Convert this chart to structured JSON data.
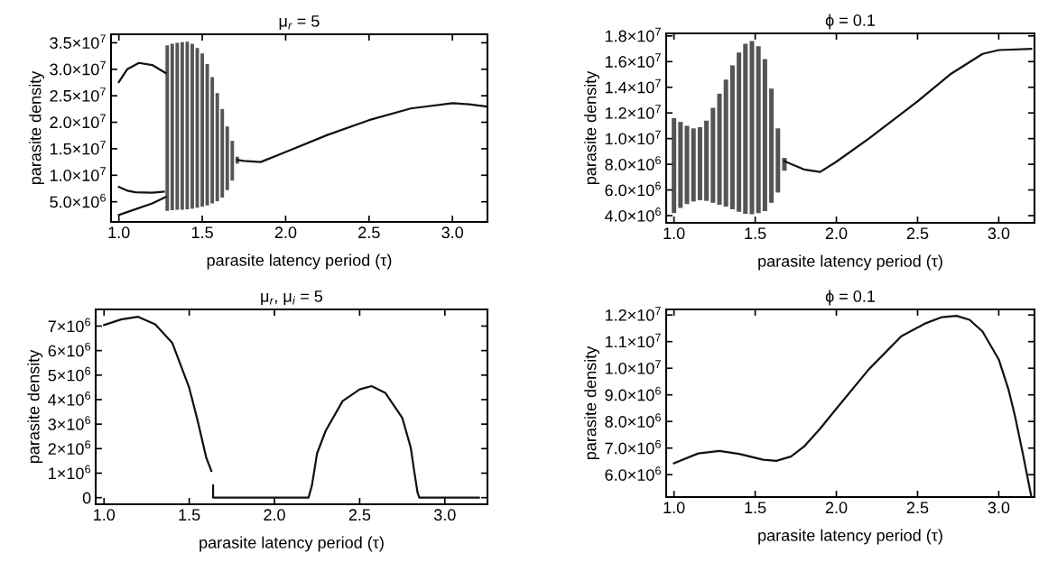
{
  "chart_data": [
    {
      "type": "line",
      "title": "μ$_{r}$ = 5",
      "xlabel": "parasite latency period (τ)",
      "ylabel": "parasite density",
      "grid": false,
      "marker": "none",
      "xlim": [
        0.953,
        3.21
      ],
      "xticks": [
        {
          "value": 1.0,
          "label": "1.0"
        },
        {
          "value": 1.5,
          "label": "1.5"
        },
        {
          "value": 2.0,
          "label": "2.0"
        },
        {
          "value": 2.5,
          "label": "2.5"
        },
        {
          "value": 3.0,
          "label": "3.0"
        }
      ],
      "ylim": [
        1200000,
        36600000
      ],
      "yticks": [
        {
          "value": 5000000,
          "label": "5.0×10$^{6}$"
        },
        {
          "value": 10000000,
          "label": "1.0×10$^{7}$"
        },
        {
          "value": 15000000,
          "label": "1.5×10$^{7}$"
        },
        {
          "value": 20000000,
          "label": "2.0×10$^{7}$"
        },
        {
          "value": 25000000,
          "label": "2.5×10$^{7}$"
        },
        {
          "value": 30000000,
          "label": "3.0×10$^{7}$"
        },
        {
          "value": 35000000,
          "label": "3.5×10$^{7}$"
        }
      ],
      "series": [
        {
          "color": "#111111",
          "x": [
            1.0,
            1.05,
            1.12,
            1.2,
            1.28
          ],
          "values": [
            27600000,
            30000000,
            31200000,
            30800000,
            29300000
          ]
        },
        {
          "color": "#111111",
          "x": [
            1.0,
            1.05,
            1.1,
            1.2,
            1.27
          ],
          "values": [
            7800000,
            7100000,
            6800000,
            6700000,
            6900000
          ]
        },
        {
          "color": "#111111",
          "x": [
            1.0,
            1.1,
            1.2,
            1.28
          ],
          "values": [
            2500000,
            3600000,
            4700000,
            5900000
          ]
        },
        {
          "type": "bar",
          "color": "#555555",
          "x": [
            1.29,
            1.32,
            1.35,
            1.38,
            1.41,
            1.44,
            1.47,
            1.5,
            1.53,
            1.56,
            1.59,
            1.62,
            1.65,
            1.68,
            1.71
          ],
          "base": [
            3300000,
            3400000,
            3500000,
            3500000,
            3600000,
            3700000,
            3900000,
            4100000,
            4300000,
            4700000,
            5100000,
            5800000,
            7200000,
            9000000,
            12200000
          ],
          "values": [
            31200000,
            31400000,
            31500000,
            31600000,
            31600000,
            31100000,
            30100000,
            28900000,
            26700000,
            23800000,
            20400000,
            16700000,
            12000000,
            7500000,
            1300000
          ]
        },
        {
          "color": "#111111",
          "x": [
            1.71,
            1.75,
            1.85,
            2.0,
            2.25,
            2.5,
            2.75,
            3.0,
            3.1,
            3.2
          ],
          "values": [
            12900000,
            12700000,
            12500000,
            14400000,
            17600000,
            20400000,
            22600000,
            23600000,
            23400000,
            23000000
          ]
        }
      ]
    },
    {
      "type": "line",
      "title": "ϕ = 0.1",
      "xlabel": "parasite latency period (τ)",
      "ylabel": "parasite density",
      "grid": false,
      "marker": "none",
      "xlim": [
        0.952,
        3.22
      ],
      "xticks": [
        {
          "value": 1.0,
          "label": "1.0"
        },
        {
          "value": 1.5,
          "label": "1.5"
        },
        {
          "value": 2.0,
          "label": "2.0"
        },
        {
          "value": 2.5,
          "label": "2.5"
        },
        {
          "value": 3.0,
          "label": "3.0"
        }
      ],
      "ylim": [
        3440000,
        18200000
      ],
      "yticks": [
        {
          "value": 4000000,
          "label": "4.0×10$^{6}$"
        },
        {
          "value": 6000000,
          "label": "6.0×10$^{6}$"
        },
        {
          "value": 8000000,
          "label": "8.0×10$^{6}$"
        },
        {
          "value": 10000000,
          "label": "1.0×10$^{7}$"
        },
        {
          "value": 12000000,
          "label": "1.2×10$^{7}$"
        },
        {
          "value": 14000000,
          "label": "1.4×10$^{7}$"
        },
        {
          "value": 16000000,
          "label": "1.6×10$^{7}$"
        },
        {
          "value": 18000000,
          "label": "1.8×10$^{7}$"
        }
      ],
      "series": [
        {
          "type": "bar",
          "color": "#555555",
          "x": [
            1.0,
            1.04,
            1.08,
            1.12,
            1.16,
            1.2,
            1.24,
            1.28,
            1.32,
            1.36,
            1.4,
            1.44,
            1.48,
            1.52,
            1.56,
            1.6,
            1.64,
            1.68
          ],
          "base": [
            4200000,
            4600000,
            4900000,
            5100000,
            5200000,
            5150000,
            5000000,
            4850000,
            4700000,
            4500000,
            4300000,
            4150000,
            4100000,
            4200000,
            4350000,
            5000000,
            5800000,
            7500000
          ],
          "values": [
            7400000,
            6700000,
            6100000,
            5700000,
            5700000,
            6250000,
            7400000,
            8650000,
            9900000,
            11200000,
            12400000,
            13250000,
            13500000,
            13000000,
            11850000,
            8900000,
            5000000,
            1000000
          ]
        },
        {
          "color": "#111111",
          "x": [
            1.68,
            1.8,
            1.9,
            2.0,
            2.2,
            2.5,
            2.7,
            2.9,
            3.0,
            3.2
          ],
          "values": [
            8240000,
            7600000,
            7400000,
            8200000,
            10000000,
            12900000,
            15000000,
            16600000,
            16900000,
            17000000
          ]
        }
      ]
    },
    {
      "type": "line",
      "title": "μ$_{r}$, μ$_{i}$ = 5",
      "xlabel": "parasite latency period (τ)",
      "ylabel": "parasite density",
      "grid": false,
      "marker": "none",
      "xlim": [
        0.951,
        3.25
      ],
      "xticks": [
        {
          "value": 1.0,
          "label": "1.0"
        },
        {
          "value": 1.5,
          "label": "1.5"
        },
        {
          "value": 2.0,
          "label": "2.0"
        },
        {
          "value": 2.5,
          "label": "2.5"
        },
        {
          "value": 3.0,
          "label": "3.0"
        }
      ],
      "ylim": [
        -270000,
        7680000
      ],
      "yticks": [
        0,
        {
          "value": 1000000,
          "label": "1×10$^{6}$"
        },
        {
          "value": 2000000,
          "label": "2×10$^{6}$"
        },
        {
          "value": 3000000,
          "label": "3×10$^{6}$"
        },
        {
          "value": 4000000,
          "label": "4×10$^{6}$"
        },
        {
          "value": 5000000,
          "label": "5×10$^{6}$"
        },
        {
          "value": 6000000,
          "label": "6×10$^{6}$"
        },
        {
          "value": 7000000,
          "label": "7×10$^{6}$"
        }
      ],
      "series": [
        {
          "color": "#111111",
          "x": [
            1.0,
            1.1,
            1.2,
            1.3,
            1.4,
            1.5,
            1.55,
            1.6,
            1.63
          ],
          "values": [
            7040000,
            7270000,
            7380000,
            7070000,
            6320000,
            4480000,
            3120000,
            1630000,
            1090000
          ]
        },
        {
          "color": "#111111",
          "x": [
            1.64,
            1.64,
            1.65,
            2.2,
            2.22,
            2.25,
            2.3,
            2.4,
            2.5,
            2.57,
            2.65,
            2.75,
            2.8,
            2.82,
            2.84,
            2.85,
            3.2
          ],
          "values": [
            500000,
            0,
            0,
            0,
            500000,
            1800000,
            2720000,
            3940000,
            4420000,
            4550000,
            4280000,
            3260000,
            2040000,
            1090000,
            200000,
            0,
            0
          ]
        }
      ]
    },
    {
      "type": "line",
      "title": "ϕ = 0.1",
      "xlabel": "parasite latency period (τ)",
      "ylabel": "parasite density",
      "grid": false,
      "marker": "none",
      "xlim": [
        0.952,
        3.22
      ],
      "xticks": [
        {
          "value": 1.0,
          "label": "1.0"
        },
        {
          "value": 1.5,
          "label": "1.5"
        },
        {
          "value": 2.0,
          "label": "2.0"
        },
        {
          "value": 2.5,
          "label": "2.5"
        },
        {
          "value": 3.0,
          "label": "3.0"
        }
      ],
      "ylim": [
        5160000,
        12210000
      ],
      "yticks": [
        {
          "value": 6000000,
          "label": "6.0×10$^{6}$"
        },
        {
          "value": 7000000,
          "label": "7.0×10$^{6}$"
        },
        {
          "value": 8000000,
          "label": "8.0×10$^{6}$"
        },
        {
          "value": 9000000,
          "label": "9.0×10$^{6}$"
        },
        {
          "value": 10000000,
          "label": "1.0×10$^{7}$"
        },
        {
          "value": 11000000,
          "label": "1.1×10$^{7}$"
        },
        {
          "value": 12000000,
          "label": "1.2×10$^{7}$"
        }
      ],
      "series": [
        {
          "color": "#111111",
          "x": [
            1.0,
            1.15,
            1.28,
            1.4,
            1.55,
            1.63,
            1.72,
            1.8,
            1.9,
            2.0,
            2.2,
            2.4,
            2.55,
            2.65,
            2.74,
            2.82,
            2.9,
            3.0,
            3.06,
            3.1,
            3.15,
            3.19,
            3.2
          ],
          "values": [
            6430000,
            6800000,
            6890000,
            6780000,
            6560000,
            6520000,
            6680000,
            7050000,
            7730000,
            8480000,
            9960000,
            11200000,
            11690000,
            11920000,
            11970000,
            11820000,
            11380000,
            10330000,
            9200000,
            8200000,
            6740000,
            5500000,
            5200000
          ]
        }
      ]
    }
  ]
}
